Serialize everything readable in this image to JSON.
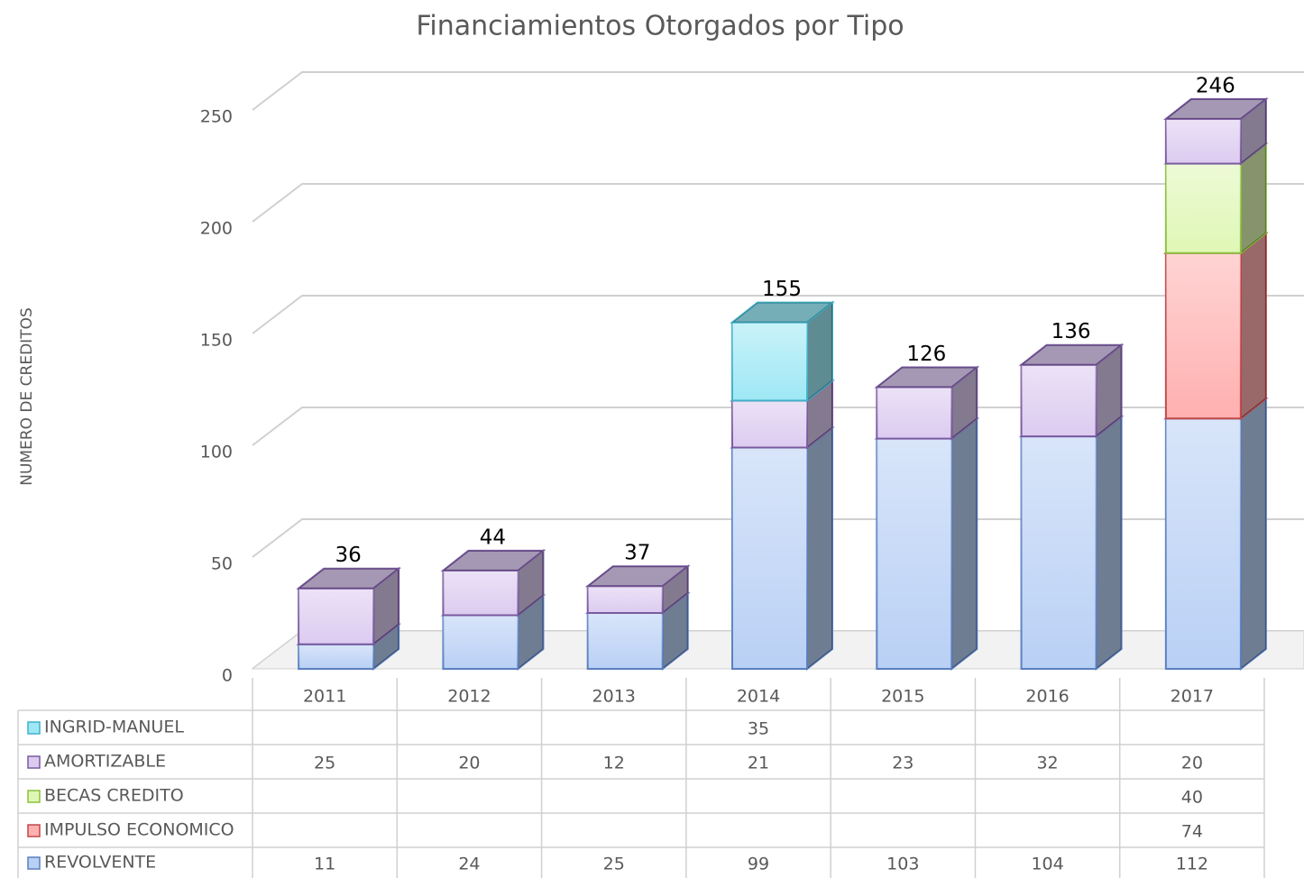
{
  "chart_data": {
    "type": "bar3d_stacked",
    "title": "Financiamientos Otorgados por Tipo",
    "y_label": "NUMERO DE CREDITOS",
    "categories": [
      "2011",
      "2012",
      "2013",
      "2014",
      "2015",
      "2016",
      "2017"
    ],
    "series": [
      {
        "name": "INGRID-MANUEL",
        "color": "#9ee8f5",
        "values": [
          null,
          null,
          null,
          35,
          null,
          null,
          null
        ]
      },
      {
        "name": "AMORTIZABLE",
        "color": "#dccbf0",
        "values": [
          25,
          20,
          12,
          21,
          23,
          32,
          20
        ]
      },
      {
        "name": "BECAS CREDITO",
        "color": "#dff7b5",
        "values": [
          null,
          null,
          null,
          null,
          null,
          null,
          40
        ]
      },
      {
        "name": "IMPULSO ECONOMICO",
        "color": "#ffb0b0",
        "values": [
          null,
          null,
          null,
          null,
          null,
          null,
          74
        ]
      },
      {
        "name": "REVOLVENTE",
        "color": "#b9d0f5",
        "values": [
          11,
          24,
          25,
          99,
          103,
          104,
          112
        ]
      }
    ],
    "totals": [
      36,
      44,
      37,
      155,
      126,
      136,
      246
    ],
    "ylim": [
      0,
      250
    ],
    "yticks": [
      0,
      50,
      100,
      150,
      200,
      250
    ],
    "grid": true
  }
}
